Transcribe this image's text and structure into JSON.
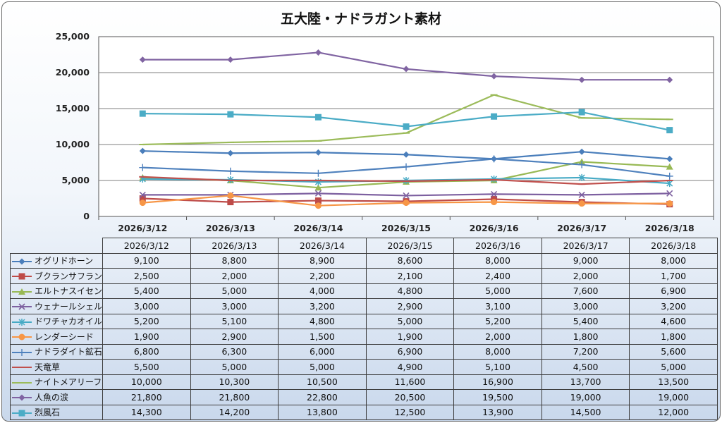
{
  "title": "五大陸・ナドラガント素材",
  "chart_data": {
    "type": "line",
    "title": "五大陸・ナドラガント素材",
    "categories": [
      "2026/3/12",
      "2026/3/13",
      "2026/3/14",
      "2026/3/15",
      "2026/3/16",
      "2026/3/17",
      "2026/3/18"
    ],
    "ylim": [
      0,
      25000
    ],
    "yticks": [
      "0",
      "5,000",
      "10,000",
      "15,000",
      "20,000",
      "25,000"
    ],
    "grid": true,
    "legend": "data-table",
    "series": [
      {
        "name": "オグリドホーン",
        "values": [
          9100,
          8800,
          8900,
          8600,
          8000,
          9000,
          8000
        ],
        "labels": [
          "9,100",
          "8,800",
          "8,900",
          "8,600",
          "8,000",
          "9,000",
          "8,000"
        ],
        "color": "#4a7ebb",
        "marker": "diamond"
      },
      {
        "name": "ブクランサフラン",
        "values": [
          2500,
          2000,
          2200,
          2100,
          2400,
          2000,
          1700
        ],
        "labels": [
          "2,500",
          "2,000",
          "2,200",
          "2,100",
          "2,400",
          "2,000",
          "1,700"
        ],
        "color": "#be4b48",
        "marker": "square"
      },
      {
        "name": "エルトナスイセン",
        "values": [
          5400,
          5000,
          4000,
          4800,
          5000,
          7600,
          6900
        ],
        "labels": [
          "5,400",
          "5,000",
          "4,000",
          "4,800",
          "5,000",
          "7,600",
          "6,900"
        ],
        "color": "#98b954",
        "marker": "triangle"
      },
      {
        "name": "ウェナールシェル",
        "values": [
          3000,
          3000,
          3200,
          2900,
          3100,
          3000,
          3200
        ],
        "labels": [
          "3,000",
          "3,000",
          "3,200",
          "2,900",
          "3,100",
          "3,000",
          "3,200"
        ],
        "color": "#7d60a0",
        "marker": "x"
      },
      {
        "name": "ドワチャカオイル",
        "values": [
          5200,
          5100,
          4800,
          5000,
          5200,
          5400,
          4600
        ],
        "labels": [
          "5,200",
          "5,100",
          "4,800",
          "5,000",
          "5,200",
          "5,400",
          "4,600"
        ],
        "color": "#46aac5",
        "marker": "star"
      },
      {
        "name": "レンダーシード",
        "values": [
          1900,
          2900,
          1500,
          1900,
          2000,
          1800,
          1800
        ],
        "labels": [
          "1,900",
          "2,900",
          "1,500",
          "1,900",
          "2,000",
          "1,800",
          "1,800"
        ],
        "color": "#f79646",
        "marker": "circle"
      },
      {
        "name": "ナドラダイト鉱石",
        "values": [
          6800,
          6300,
          6000,
          6900,
          8000,
          7200,
          5600
        ],
        "labels": [
          "6,800",
          "6,300",
          "6,000",
          "6,900",
          "8,000",
          "7,200",
          "5,600"
        ],
        "color": "#4f81bd",
        "marker": "plus"
      },
      {
        "name": "天竜草",
        "values": [
          5500,
          5000,
          5000,
          4900,
          5100,
          4500,
          5000
        ],
        "labels": [
          "5,500",
          "5,000",
          "5,000",
          "4,900",
          "5,100",
          "4,500",
          "5,000"
        ],
        "color": "#c0504d",
        "marker": "dash"
      },
      {
        "name": "ナイトメアリーフ",
        "values": [
          10000,
          10300,
          10500,
          11600,
          16900,
          13700,
          13500
        ],
        "labels": [
          "10,000",
          "10,300",
          "10,500",
          "11,600",
          "16,900",
          "13,700",
          "13,500"
        ],
        "color": "#9bbb59",
        "marker": "dash"
      },
      {
        "name": "人魚の涙",
        "values": [
          21800,
          21800,
          22800,
          20500,
          19500,
          19000,
          19000
        ],
        "labels": [
          "21,800",
          "21,800",
          "22,800",
          "20,500",
          "19,500",
          "19,000",
          "19,000"
        ],
        "color": "#8064a2",
        "marker": "diamond"
      },
      {
        "name": "烈風石",
        "values": [
          14300,
          14200,
          13800,
          12500,
          13900,
          14500,
          12000
        ],
        "labels": [
          "14,300",
          "14,200",
          "13,800",
          "12,500",
          "13,900",
          "14,500",
          "12,000"
        ],
        "color": "#4bacc6",
        "marker": "square"
      }
    ]
  }
}
